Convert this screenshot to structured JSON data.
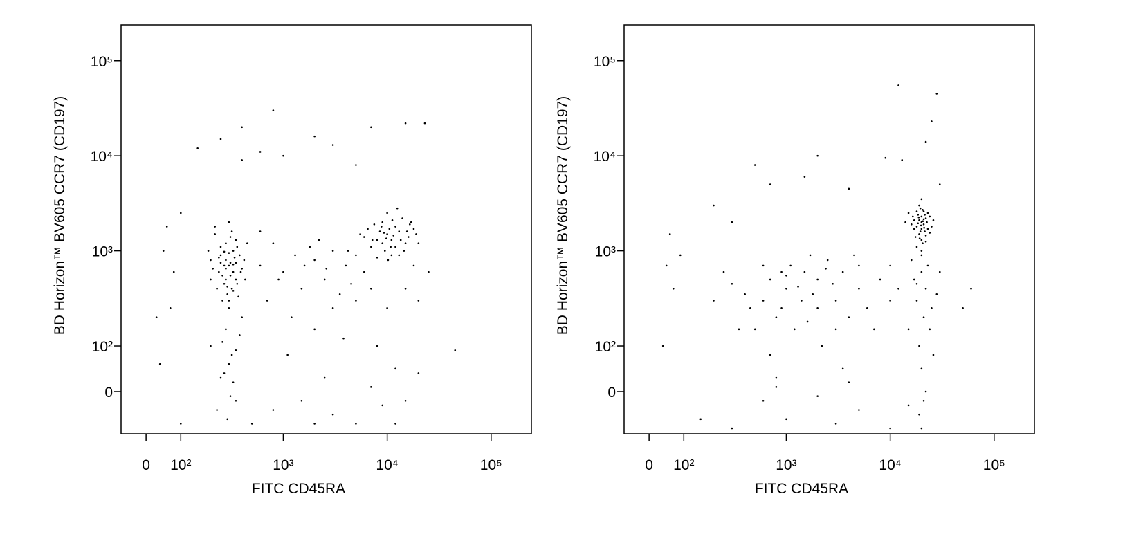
{
  "chart_data": [
    {
      "type": "scatter",
      "x_label": "FITC CD45RA",
      "y_label": "BD Horizon™ BV605 CCR7 (CD197)",
      "color": "#000000",
      "xlim": [
        -72,
        244000
      ],
      "ylim": [
        -92,
        238000
      ],
      "xticks": [
        0,
        {
          "value": 100,
          "label": "10²"
        },
        {
          "value": 1000,
          "label": "10³"
        },
        {
          "value": 10000,
          "label": "10⁴"
        },
        {
          "value": 100000,
          "label": "10⁵"
        }
      ],
      "yticks": [
        0,
        {
          "value": 100,
          "label": "10²"
        },
        {
          "value": 1000,
          "label": "10³"
        },
        {
          "value": 10000,
          "label": "10⁴"
        },
        {
          "value": 100000,
          "label": "10⁵"
        }
      ],
      "x": [
        300,
        250,
        350,
        280,
        320,
        200,
        400,
        260,
        330,
        290,
        220,
        380,
        310,
        270,
        350,
        240,
        300,
        420,
        190,
        330,
        280,
        360,
        250,
        300,
        230,
        310,
        270,
        340,
        450,
        210,
        300,
        260,
        390,
        320,
        280,
        350,
        240,
        300,
        430,
        220,
        330,
        280,
        360,
        200,
        310,
        250,
        370,
        290,
        330,
        270,
        280,
        320,
        250,
        350,
        300,
        260,
        400,
        230,
        330,
        290,
        200,
        380,
        310,
        270,
        350,
        10000,
        8000,
        12000,
        15000,
        9000,
        7000,
        11000,
        13000,
        6000,
        18000,
        10000,
        9500,
        14000,
        8500,
        12000,
        16000,
        7500,
        11000,
        20000,
        10500,
        9000,
        13000,
        5500,
        17000,
        11500,
        8000,
        12500,
        14500,
        9800,
        6500,
        15500,
        10800,
        7200,
        19000,
        11200,
        8800,
        13500,
        10200,
        16500,
        9300,
        1000,
        2000,
        1500,
        3000,
        700,
        4000,
        2500,
        5000,
        1200,
        800,
        3500,
        600,
        2000,
        4500,
        1800,
        6000,
        900,
        3000,
        7000,
        1300,
        2200,
        5000,
        1100,
        3800,
        15000,
        20000,
        10000,
        8000,
        25000,
        12000,
        18000,
        600,
        2600,
        4200,
        1600,
        500,
        2000,
        5000,
        12000,
        100,
        800,
        3000,
        9000,
        15000,
        7000,
        1500,
        20000,
        2500,
        800,
        400,
        250,
        7000,
        15000,
        23000,
        2000,
        1000,
        3000,
        150,
        400,
        600,
        5000,
        70,
        50,
        30,
        40,
        80,
        45000,
        60,
        100
      ],
      "values": [
        700,
        900,
        500,
        1200,
        400,
        800,
        650,
        550,
        1000,
        350,
        1500,
        900,
        750,
        450,
        1300,
        600,
        300,
        800,
        1000,
        600,
        800,
        450,
        1100,
        2000,
        400,
        550,
        700,
        850,
        1200,
        650,
        950,
        300,
        600,
        1600,
        500,
        750,
        850,
        250,
        500,
        1800,
        380,
        650,
        1100,
        500,
        1400,
        750,
        330,
        420,
        720,
        980,
        150,
        80,
        30,
        -20,
        60,
        110,
        200,
        -40,
        20,
        -60,
        100,
        130,
        -10,
        40,
        90,
        1500,
        1300,
        1800,
        1200,
        2000,
        1100,
        900,
        1600,
        1400,
        1700,
        2500,
        1000,
        2200,
        1600,
        1100,
        1400,
        1900,
        1300,
        1200,
        1700,
        1200,
        900,
        1500,
        2000,
        1450,
        850,
        2800,
        1000,
        1350,
        1700,
        1600,
        1100,
        1300,
        1500,
        2100,
        1800,
        1300,
        800,
        1900,
        1550,
        600,
        800,
        400,
        1000,
        300,
        700,
        500,
        900,
        200,
        1200,
        350,
        700,
        150,
        450,
        1100,
        600,
        500,
        250,
        400,
        900,
        1300,
        300,
        80,
        120,
        400,
        300,
        250,
        100,
        600,
        50,
        700,
        1600,
        650,
        1000,
        700,
        -70,
        -70,
        -70,
        -70,
        -70,
        -40,
        -50,
        -30,
        -20,
        10,
        -20,
        40,
        30,
        30000,
        20000,
        15000,
        20000,
        22000,
        22000,
        16000,
        10000,
        13000,
        12000,
        9000,
        11000,
        8000,
        250,
        1000,
        200,
        60,
        600,
        90,
        1800,
        2500
      ]
    },
    {
      "type": "scatter",
      "x_label": "FITC CD45RA",
      "y_label": "BD Horizon™ BV605 CCR7 (CD197)",
      "color": "#000000",
      "xlim": [
        -72,
        244000
      ],
      "ylim": [
        -92,
        238000
      ],
      "xticks": [
        0,
        {
          "value": 100,
          "label": "10²"
        },
        {
          "value": 1000,
          "label": "10³"
        },
        {
          "value": 10000,
          "label": "10⁴"
        },
        {
          "value": 100000,
          "label": "10⁵"
        }
      ],
      "yticks": [
        0,
        {
          "value": 100,
          "label": "10²"
        },
        {
          "value": 1000,
          "label": "10³"
        },
        {
          "value": 10000,
          "label": "10⁴"
        },
        {
          "value": 100000,
          "label": "10⁵"
        }
      ],
      "x": [
        20000,
        18000,
        22000,
        19000,
        21000,
        17000,
        23000,
        20000,
        16000,
        24000,
        19500,
        21500,
        18500,
        20500,
        17500,
        22500,
        19000,
        21000,
        20000,
        18000,
        25000,
        15000,
        20000,
        22000,
        19000,
        21000,
        17000,
        23000,
        20000,
        18500,
        21500,
        16500,
        24000,
        19500,
        20500,
        22000,
        18000,
        20000,
        14000,
        26000,
        19800,
        21200,
        18800,
        20600,
        19200,
        20000,
        22000,
        18000,
        21000,
        19000,
        23000,
        17000,
        20000,
        25000,
        16000,
        21000,
        19000,
        22000,
        24000,
        20000,
        18000,
        28000,
        15000,
        30000,
        26000,
        1000,
        600,
        2000,
        800,
        1500,
        400,
        3000,
        700,
        5000,
        1200,
        300,
        2500,
        900,
        4000,
        1800,
        500,
        3500,
        1100,
        6000,
        2200,
        700,
        8000,
        1400,
        250,
        3000,
        10000,
        900,
        4500,
        1600,
        2800,
        600,
        1300,
        7000,
        450,
        2000,
        12000,
        3500,
        800,
        5000,
        1000,
        200,
        10000,
        1700,
        350,
        2400,
        300,
        1000,
        3000,
        10000,
        600,
        2000,
        5000,
        800,
        15000,
        150,
        20000,
        4000,
        12000,
        28000,
        22000,
        25000,
        9000,
        2000,
        500,
        1500,
        4000,
        700,
        300,
        200,
        60,
        50,
        30000,
        13000,
        70,
        40,
        90,
        60000,
        50000
      ],
      "values": [
        2000,
        1800,
        2200,
        1500,
        2600,
        2100,
        1700,
        1300,
        1900,
        2300,
        2800,
        1600,
        2400,
        1200,
        1400,
        2000,
        3000,
        1900,
        2300,
        1100,
        1800,
        2500,
        1700,
        1450,
        2100,
        2150,
        1700,
        2500,
        1000,
        1950,
        2400,
        2300,
        1550,
        1600,
        2700,
        1250,
        2600,
        3500,
        2000,
        2100,
        1850,
        1750,
        2250,
        2050,
        1350,
        600,
        400,
        300,
        200,
        100,
        700,
        500,
        50,
        250,
        800,
        -20,
        -50,
        0,
        150,
        900,
        450,
        350,
        150,
        600,
        80,
        400,
        300,
        500,
        200,
        600,
        350,
        300,
        500,
        400,
        150,
        450,
        800,
        250,
        200,
        350,
        150,
        600,
        700,
        250,
        100,
        80,
        500,
        300,
        600,
        150,
        300,
        600,
        900,
        180,
        450,
        700,
        420,
        150,
        250,
        250,
        400,
        50,
        30,
        700,
        550,
        300,
        700,
        900,
        150,
        650,
        -80,
        -60,
        -70,
        -80,
        -20,
        -10,
        -40,
        10,
        -30,
        -60,
        -80,
        20,
        55000,
        45000,
        14000,
        23000,
        9500,
        10000,
        8000,
        6000,
        4500,
        5000,
        2000,
        3000,
        1500,
        700,
        5000,
        9000,
        400,
        100,
        900,
        400,
        250
      ]
    }
  ]
}
